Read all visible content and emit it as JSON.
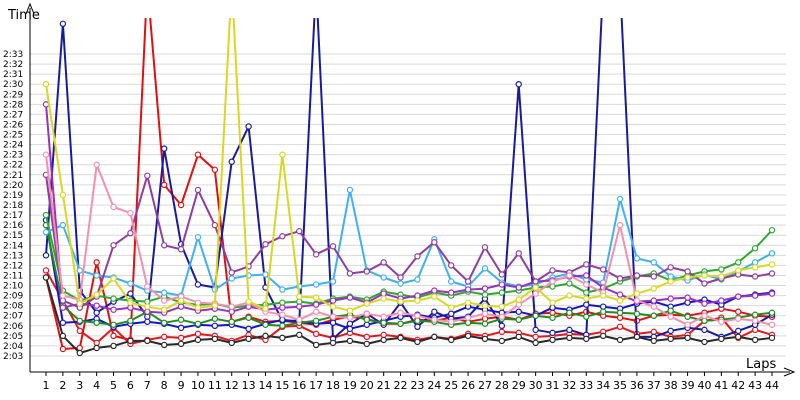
{
  "chart_data": {
    "type": "line",
    "xlabel": "Laps",
    "ylabel": "Time",
    "x": [
      1,
      2,
      3,
      4,
      5,
      6,
      7,
      8,
      9,
      10,
      11,
      12,
      13,
      14,
      15,
      16,
      17,
      18,
      19,
      20,
      21,
      22,
      23,
      24,
      25,
      26,
      27,
      28,
      29,
      30,
      31,
      32,
      33,
      34,
      35,
      36,
      37,
      38,
      39,
      40,
      41,
      42,
      43,
      44
    ],
    "x_ticks": [
      "1",
      "2",
      "3",
      "4",
      "5",
      "6",
      "7",
      "8",
      "9",
      "10",
      "11",
      "12",
      "13",
      "14",
      "15",
      "16",
      "17",
      "18",
      "19",
      "20",
      "21",
      "22",
      "23",
      "24",
      "25",
      "26",
      "27",
      "28",
      "29",
      "30",
      "31",
      "32",
      "33",
      "34",
      "35",
      "36",
      "37",
      "38",
      "39",
      "40",
      "41",
      "42",
      "43",
      "44"
    ],
    "y_ticks": [
      {
        "label": "2:03",
        "seconds": 123
      },
      {
        "label": "2:04",
        "seconds": 124
      },
      {
        "label": "2:05",
        "seconds": 125
      },
      {
        "label": "2:06",
        "seconds": 126
      },
      {
        "label": "2:07",
        "seconds": 127
      },
      {
        "label": "2:08",
        "seconds": 128
      },
      {
        "label": "2:09",
        "seconds": 129
      },
      {
        "label": "2:10",
        "seconds": 130
      },
      {
        "label": "2:11",
        "seconds": 131
      },
      {
        "label": "2:12",
        "seconds": 132
      },
      {
        "label": "2:13",
        "seconds": 133
      },
      {
        "label": "2:14",
        "seconds": 134
      },
      {
        "label": "2:15",
        "seconds": 135
      },
      {
        "label": "2:16",
        "seconds": 136
      },
      {
        "label": "2:17",
        "seconds": 137
      },
      {
        "label": "2:18",
        "seconds": 138
      },
      {
        "label": "2:19",
        "seconds": 139
      },
      {
        "label": "2:20",
        "seconds": 140
      },
      {
        "label": "2:21",
        "seconds": 141
      },
      {
        "label": "2:22",
        "seconds": 142
      },
      {
        "label": "2:23",
        "seconds": 143
      },
      {
        "label": "2:24",
        "seconds": 144
      },
      {
        "label": "2:25",
        "seconds": 145
      },
      {
        "label": "2:26",
        "seconds": 146
      },
      {
        "label": "2:27",
        "seconds": 147
      },
      {
        "label": "2:28",
        "seconds": 148
      },
      {
        "label": "2:29",
        "seconds": 149
      },
      {
        "label": "2:30",
        "seconds": 150
      },
      {
        "label": "2:31",
        "seconds": 151
      },
      {
        "label": "2:32",
        "seconds": 152
      },
      {
        "label": "2:33",
        "seconds": 153
      }
    ],
    "ylim": [
      122.5,
      153.5
    ],
    "xlim": [
      1,
      44
    ],
    "grid": true,
    "legend": "none",
    "series": [
      {
        "color": "#e8141e",
        "values": [
          131.5,
          128.5,
          125.5,
          124.3,
          125.8,
          124.2,
          124.6,
          124.9,
          124.8,
          125.2,
          125.0,
          124.5,
          125.1,
          124.6,
          125.9,
          126.0,
          125.2,
          124.8,
          125.3,
          124.9,
          125.1,
          124.9,
          124.6,
          124.9,
          124.7,
          125.2,
          125.0,
          125.4,
          125.3,
          124.9,
          125.0,
          125.2,
          125.1,
          125.4,
          125.9,
          125.2,
          125.4,
          124.9,
          125.1,
          126.5,
          126.8,
          124.8,
          125.6,
          125.1
        ]
      },
      {
        "color": "#e01010",
        "values": [
          130.8,
          123.7,
          123.8,
          132.3,
          125.0,
          124.6,
          160,
          140,
          138,
          143,
          141.5,
          126.4,
          126.9,
          126.4,
          126.5,
          126.3,
          126.1,
          126.6,
          126.9,
          126.7,
          126.2,
          126.2,
          126.6,
          126.5,
          126.8,
          126.4,
          126.7,
          126.9,
          126.6,
          127.2,
          127.3,
          127.0,
          127.4,
          127.0,
          126.8,
          126.5,
          127.0,
          127.1,
          127.0,
          127.3,
          127.7,
          127.4,
          127.0,
          126.9
        ]
      },
      {
        "color": "#1a1a9e",
        "values": [
          133.0,
          156.0,
          129.5,
          127.3,
          128.4,
          129.2,
          126.9,
          143.6,
          134.1,
          130.1,
          129.8,
          142.3,
          145.8,
          129.8,
          126.5,
          126.5,
          160,
          124.7,
          126.2,
          127.2,
          126.1,
          128.3,
          125.9,
          127.4,
          126.7,
          126.9,
          128.7,
          126.0,
          150.0,
          125.6,
          125.3,
          125.6,
          125.1,
          160,
          160,
          124.9,
          124.9,
          125.5,
          125.8,
          125.6,
          124.9,
          125.5,
          126.1,
          127.1
        ]
      },
      {
        "color": "#1414c8",
        "values": [
          136.5,
          126.3,
          126.4,
          126.7,
          125.9,
          126.2,
          126.4,
          126.2,
          125.8,
          126.1,
          126.0,
          126.1,
          125.7,
          126.2,
          126.6,
          126.4,
          126.2,
          126.3,
          125.7,
          126.1,
          126.5,
          126.9,
          127.1,
          126.8,
          127.2,
          127.9,
          127.6,
          127.3,
          127.4,
          127.0,
          127.8,
          127.6,
          128.1,
          127.9,
          127.7,
          128.2,
          128.4,
          127.9,
          128.3,
          128.6,
          128.1,
          128.9,
          129.1,
          129.3
        ]
      },
      {
        "color": "#1e8c1e",
        "values": [
          136.0,
          128.0,
          126.5,
          126.3,
          126.1,
          126.5,
          127.4,
          126.3,
          126.6,
          126.2,
          126.7,
          126.4,
          126.8,
          126.1,
          126.0,
          126.3,
          126.5,
          126.9,
          127.1,
          126.6,
          126.3,
          126.2,
          126.5,
          126.4,
          126.1,
          126.3,
          126.2,
          126.7,
          126.6,
          127.0,
          126.8,
          127.3,
          126.9,
          127.4,
          127.3,
          127.2,
          127.0,
          127.5,
          126.9,
          126.5,
          126.6,
          126.8,
          127.1,
          127.3
        ]
      },
      {
        "color": "#2ea82e",
        "values": [
          137.0,
          129.5,
          128.5,
          129.0,
          128.7,
          128.5,
          128.4,
          128.9,
          128.3,
          128.1,
          128.2,
          127.8,
          128.0,
          128.1,
          128.3,
          128.4,
          128.2,
          128.7,
          128.9,
          128.6,
          129.4,
          129.1,
          128.8,
          129.3,
          129.0,
          129.4,
          129.1,
          129.3,
          129.5,
          129.8,
          129.9,
          130.2,
          129.3,
          129.7,
          130.4,
          130.9,
          131.2,
          130.5,
          131.0,
          131.4,
          131.6,
          132.3,
          133.7,
          135.5
        ]
      },
      {
        "color": "#40b0f0",
        "values": [
          135.3,
          136.0,
          131.5,
          131.0,
          130.8,
          130.2,
          129.5,
          129.3,
          129.0,
          134.8,
          129.6,
          130.7,
          131.0,
          131.1,
          129.6,
          129.9,
          130.1,
          130.4,
          139.5,
          131.5,
          130.8,
          130.2,
          130.6,
          134.6,
          130.4,
          129.9,
          131.7,
          130.3,
          129.9,
          130.1,
          130.8,
          131.2,
          130.6,
          130.3,
          138.6,
          132.7,
          132.3,
          130.9,
          130.5,
          131.1,
          130.6,
          131.4,
          132.3,
          133.2
        ]
      },
      {
        "color": "#9b2fbf",
        "values": [
          148.0,
          127.8,
          128.2,
          128.0,
          127.6,
          127.8,
          127.4,
          127.3,
          127.9,
          127.5,
          127.7,
          127.4,
          127.9,
          127.6,
          127.8,
          127.9,
          128.1,
          128.5,
          128.8,
          128.3,
          129.2,
          128.7,
          129.0,
          129.5,
          129.3,
          129.6,
          129.7,
          130.1,
          129.8,
          130.4,
          130.5,
          130.9,
          131.0,
          129.8,
          129.1,
          128.4,
          128.5,
          128.7,
          128.8,
          128.2,
          128.5,
          128.9,
          129.0,
          129.2
        ]
      },
      {
        "color": "#8e3ea0",
        "values": [
          141.0,
          128.5,
          127.8,
          128.9,
          134.0,
          135.2,
          140.9,
          134.0,
          133.6,
          139.5,
          136.0,
          131.3,
          131.9,
          134.1,
          134.9,
          135.4,
          133.1,
          133.9,
          131.2,
          131.4,
          132.3,
          130.8,
          132.9,
          134.3,
          132.0,
          130.4,
          133.8,
          131.1,
          133.2,
          130.4,
          131.5,
          131.3,
          132.1,
          131.6,
          130.7,
          131.0,
          130.9,
          131.8,
          131.4,
          130.2,
          130.7,
          131.1,
          130.9,
          131.2
        ]
      },
      {
        "color": "#f58fb0",
        "values": [
          143.0,
          129.0,
          128.6,
          142.0,
          137.8,
          137.2,
          129.9,
          128.5,
          128.9,
          128.3,
          128.2,
          127.9,
          128.3,
          127.4,
          127.1,
          126.6,
          127.4,
          126.9,
          126.8,
          127.2,
          126.9,
          127.3,
          127.0,
          126.6,
          126.4,
          126.8,
          127.2,
          126.9,
          128.1,
          129.2,
          130.4,
          131.0,
          130.1,
          129.3,
          136.0,
          128.5,
          127.9,
          126.9,
          126.1,
          127.0,
          126.4,
          126.7,
          126.5,
          126.1
        ]
      },
      {
        "color": "#d8d820",
        "values": [
          150.0,
          139.0,
          128.2,
          129.1,
          130.7,
          128.3,
          127.9,
          127.6,
          128.5,
          127.8,
          128.0,
          160,
          128.4,
          127.7,
          143.0,
          128.9,
          128.8,
          127.9,
          127.5,
          128.2,
          128.7,
          128.4,
          128.5,
          128.9,
          127.8,
          128.3,
          128.0,
          127.9,
          128.6,
          129.8,
          128.3,
          129.0,
          128.7,
          129.0,
          128.5,
          129.2,
          129.7,
          130.4,
          130.8,
          131.0,
          130.9,
          131.5,
          131.8,
          132.1
        ]
      },
      {
        "color": "#2a2a2a",
        "values": [
          130.8,
          125.0,
          123.3,
          123.8,
          124.0,
          124.5,
          124.5,
          124.1,
          124.2,
          124.6,
          124.7,
          124.3,
          124.7,
          125.0,
          124.8,
          125.1,
          124.1,
          124.3,
          124.5,
          124.2,
          124.6,
          124.8,
          124.4,
          124.9,
          124.6,
          125.0,
          124.7,
          124.5,
          124.9,
          124.3,
          124.6,
          124.8,
          124.7,
          125.0,
          124.6,
          124.9,
          124.5,
          124.7,
          124.8,
          124.4,
          124.7,
          124.9,
          124.6,
          124.8
        ]
      }
    ]
  }
}
